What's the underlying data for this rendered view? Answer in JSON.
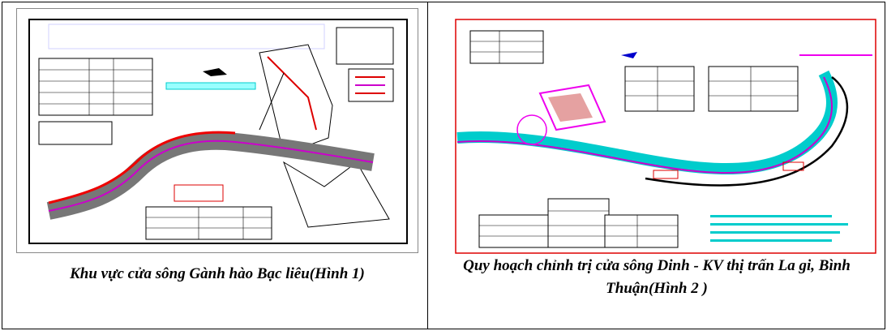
{
  "figures": [
    {
      "caption": "Khu vực cửa sông Gành hào Bạc liêu(Hình 1)"
    },
    {
      "caption": "Quy hoạch chỉnh trị cửa sông Dinh - KV thị trấn La gi, Bình Thuận(Hình 2 )"
    }
  ]
}
